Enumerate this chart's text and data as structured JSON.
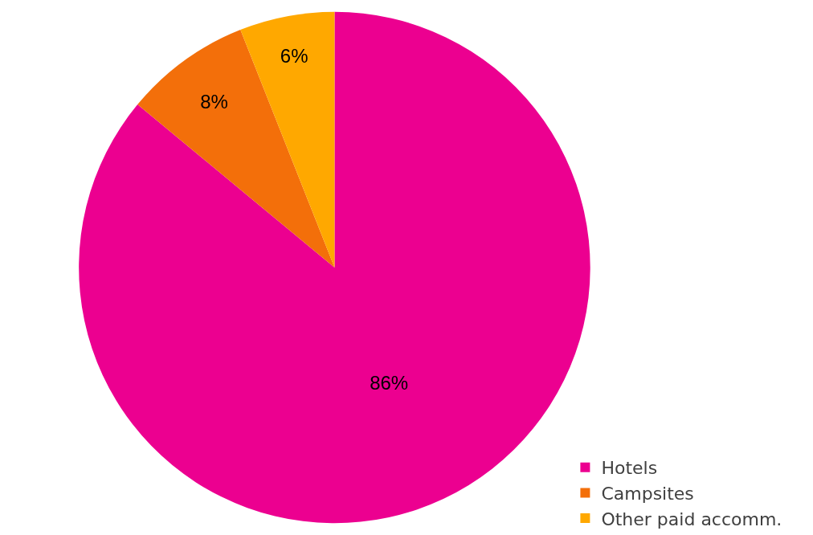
{
  "chart_data": {
    "type": "pie",
    "categories": [
      "Hotels",
      "Campsites",
      "Other paid accomm."
    ],
    "values": [
      86,
      8,
      6
    ],
    "colors": [
      "#ec0090",
      "#f36f0a",
      "#ffa800"
    ],
    "value_labels": [
      "86%",
      "8%",
      "6%"
    ],
    "legend": "bottom right"
  }
}
